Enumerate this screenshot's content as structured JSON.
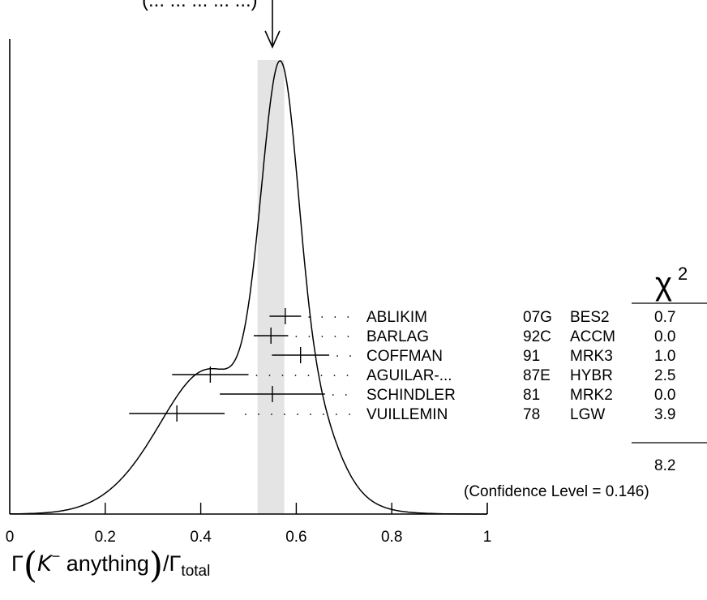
{
  "chart_data": {
    "type": "ideogram",
    "xlim": [
      0,
      1
    ],
    "x_ticks": [
      "0",
      "0.2",
      "0.4",
      "0.6",
      "0.8",
      "1"
    ],
    "x_tick_values": [
      0,
      0.2,
      0.4,
      0.6,
      0.8,
      1
    ],
    "xlabel": {
      "prefix": "Γ",
      "particle": "K",
      "charge": "−",
      "rest": " anything",
      "slash": "/Γ",
      "subscript": "total"
    },
    "header_text": "(... ... ... ... ...)",
    "average": {
      "value": 0.547,
      "band_low": 0.519,
      "band_high": 0.575
    },
    "measurements": [
      {
        "author": "ABLIKIM",
        "year": "07G",
        "tech": "BES2",
        "chi2": "0.7",
        "value": 0.577,
        "err_low": 0.033,
        "err_high": 0.033
      },
      {
        "author": "BARLAG",
        "year": "92C",
        "tech": "ACCM",
        "chi2": "0.0",
        "value": 0.547,
        "err_low": 0.036,
        "err_high": 0.036
      },
      {
        "author": "COFFMAN",
        "year": "91",
        "tech": "MRK3",
        "chi2": "1.0",
        "value": 0.609,
        "err_low": 0.06,
        "err_high": 0.06
      },
      {
        "author": "AGUILAR-...",
        "year": "87E",
        "tech": "HYBR",
        "chi2": "2.5",
        "value": 0.42,
        "err_low": 0.08,
        "err_high": 0.08
      },
      {
        "author": "SCHINDLER",
        "year": "81",
        "tech": "MRK2",
        "chi2": "0.0",
        "value": 0.55,
        "err_low": 0.11,
        "err_high": 0.11
      },
      {
        "author": "VUILLEMIN",
        "year": "78",
        "tech": "LGW",
        "chi2": "3.9",
        "value": 0.35,
        "err_low": 0.1,
        "err_high": 0.1
      }
    ],
    "chi2_header": "χ",
    "chi2_header_sup": "2",
    "chi2_total": "8.2",
    "confidence_text": "(Confidence Level = 0.146)"
  }
}
